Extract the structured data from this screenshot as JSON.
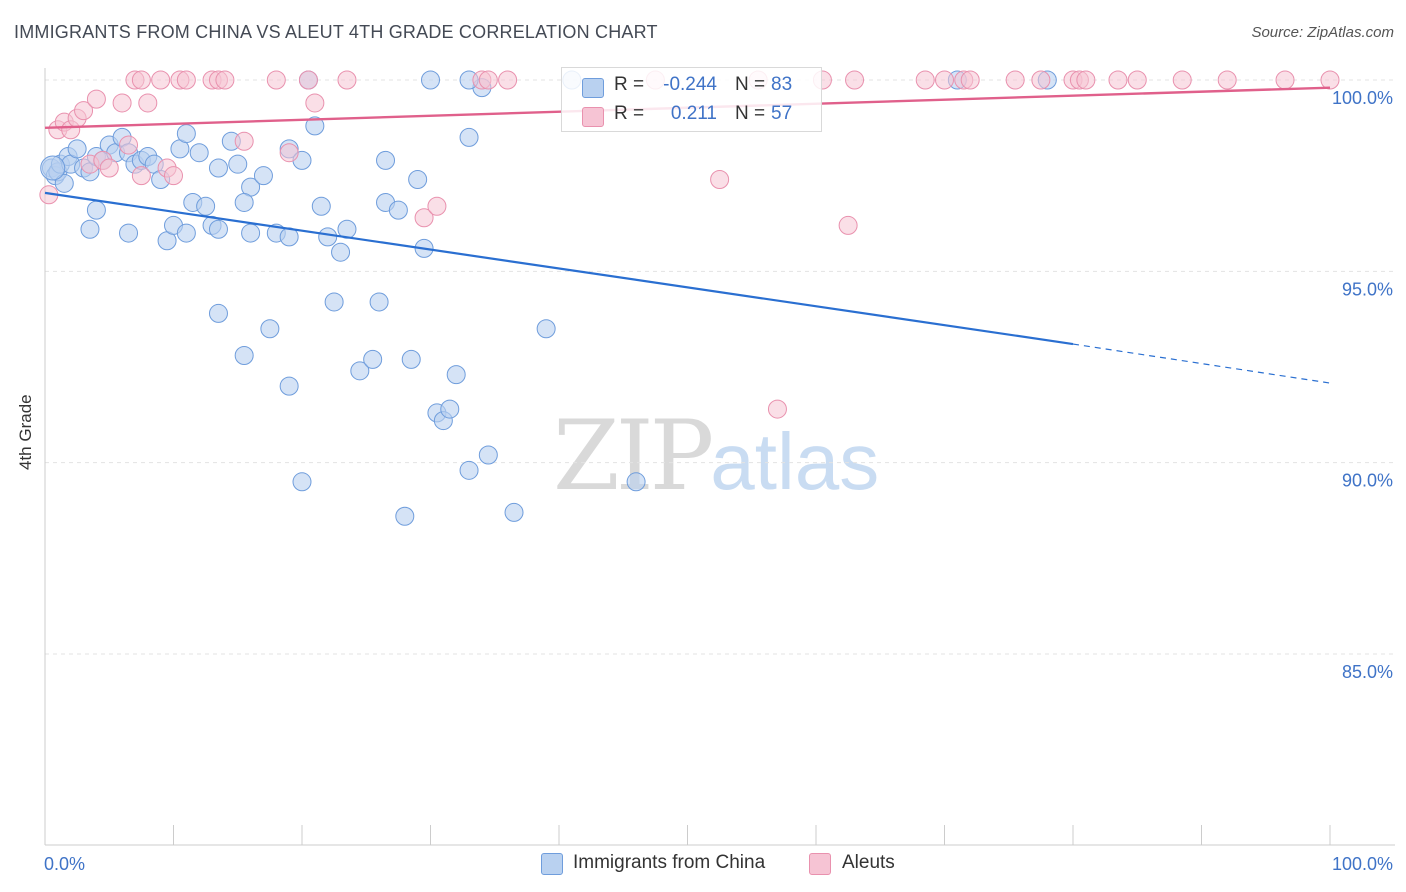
{
  "header": {
    "title": "IMMIGRANTS FROM CHINA VS ALEUT 4TH GRADE CORRELATION CHART",
    "source": "Source: ZipAtlas.com"
  },
  "watermark": {
    "zip": "ZIP",
    "atlas": "atlas"
  },
  "legend": {
    "rows": [
      {
        "r_label": "R =",
        "r_value": "-0.244",
        "n_label": "N =",
        "n_value": "83"
      },
      {
        "r_label": "R =",
        "r_value": "0.211",
        "n_label": "N =",
        "n_value": "57"
      }
    ]
  },
  "bottom_legend": {
    "china": "Immigrants from China",
    "aleut": "Aleuts"
  },
  "colors": {
    "china_fill": "#b9d1f0",
    "china_stroke": "#6f9ddc",
    "china_line": "#2a6fd1",
    "aleut_fill": "#f6c4d4",
    "aleut_stroke": "#e991ae",
    "aleut_line": "#e0608b",
    "tick_label": "#3f73c7",
    "grid": "#e3e3e3"
  },
  "chart_data": {
    "type": "scatter",
    "xlabel": "",
    "ylabel": "4th Grade",
    "xlim": [
      0,
      100
    ],
    "ylim": [
      80.5,
      100.8
    ],
    "x_tick_labels": [
      {
        "value": 0,
        "label": "0.0%"
      },
      {
        "value": 100,
        "label": "100.0%"
      }
    ],
    "y_tick_labels": [
      {
        "value": 100,
        "label": "100.0%"
      },
      {
        "value": 95,
        "label": "95.0%"
      },
      {
        "value": 90,
        "label": "90.0%"
      },
      {
        "value": 85,
        "label": "85.0%"
      }
    ],
    "grid": true,
    "legend_position": "top-center",
    "series": [
      {
        "name": "Immigrants from China",
        "r": -0.244,
        "n": 83,
        "trend": {
          "x0": 0,
          "y0": 97.05,
          "x1": 80,
          "y1": 93.1,
          "dash_to": 100,
          "dash_y": 92.08
        },
        "points": [
          [
            0.5,
            97.7
          ],
          [
            0.8,
            97.5
          ],
          [
            1.0,
            97.6
          ],
          [
            1.2,
            97.8
          ],
          [
            1.5,
            97.3
          ],
          [
            1.8,
            98.0
          ],
          [
            2.0,
            97.8
          ],
          [
            2.5,
            98.2
          ],
          [
            3.0,
            97.7
          ],
          [
            3.5,
            97.6
          ],
          [
            4.0,
            98.0
          ],
          [
            4.5,
            97.9
          ],
          [
            5.0,
            98.3
          ],
          [
            5.5,
            98.1
          ],
          [
            6.0,
            98.5
          ],
          [
            6.5,
            98.1
          ],
          [
            7.0,
            97.8
          ],
          [
            7.5,
            97.9
          ],
          [
            8.0,
            98.0
          ],
          [
            8.5,
            97.8
          ],
          [
            9.0,
            97.4
          ],
          [
            10.5,
            98.2
          ],
          [
            11.0,
            98.6
          ],
          [
            12.0,
            98.1
          ],
          [
            13.5,
            97.7
          ],
          [
            14.5,
            98.4
          ],
          [
            15.0,
            97.8
          ],
          [
            16.0,
            97.2
          ],
          [
            17.0,
            97.5
          ],
          [
            19.0,
            98.2
          ],
          [
            20.0,
            97.9
          ],
          [
            21.0,
            98.8
          ],
          [
            26.5,
            97.9
          ],
          [
            33.0,
            98.5
          ],
          [
            34.0,
            99.8
          ],
          [
            29.0,
            97.4
          ],
          [
            4.0,
            96.6
          ],
          [
            3.5,
            96.1
          ],
          [
            6.5,
            96.0
          ],
          [
            9.5,
            95.8
          ],
          [
            10.0,
            96.2
          ],
          [
            11.0,
            96.0
          ],
          [
            11.5,
            96.8
          ],
          [
            12.5,
            96.7
          ],
          [
            13.0,
            96.2
          ],
          [
            13.5,
            96.1
          ],
          [
            15.5,
            96.8
          ],
          [
            16.0,
            96.0
          ],
          [
            18.0,
            96.0
          ],
          [
            19.0,
            95.9
          ],
          [
            21.5,
            96.7
          ],
          [
            22.0,
            95.9
          ],
          [
            23.0,
            95.5
          ],
          [
            23.5,
            96.1
          ],
          [
            26.5,
            96.8
          ],
          [
            27.5,
            96.6
          ],
          [
            29.5,
            95.6
          ],
          [
            13.5,
            93.9
          ],
          [
            17.5,
            93.5
          ],
          [
            15.5,
            92.8
          ],
          [
            22.5,
            94.2
          ],
          [
            26.0,
            94.2
          ],
          [
            24.5,
            92.4
          ],
          [
            25.5,
            92.7
          ],
          [
            28.5,
            92.7
          ],
          [
            32.0,
            92.3
          ],
          [
            19.0,
            92.0
          ],
          [
            30.5,
            91.3
          ],
          [
            31.0,
            91.1
          ],
          [
            31.5,
            91.4
          ],
          [
            34.5,
            90.2
          ],
          [
            33.0,
            89.8
          ],
          [
            20.0,
            89.5
          ],
          [
            28.0,
            88.6
          ],
          [
            36.5,
            88.7
          ],
          [
            46.0,
            89.5
          ],
          [
            39.0,
            93.5
          ],
          [
            20.5,
            100.0
          ],
          [
            30.0,
            100.0
          ],
          [
            33.0,
            100.0
          ],
          [
            41.0,
            100.0
          ],
          [
            71.0,
            100.0
          ],
          [
            78.0,
            100.0
          ]
        ]
      },
      {
        "name": "Aleuts",
        "r": 0.211,
        "n": 57,
        "trend": {
          "x0": 0,
          "y0": 98.75,
          "x1": 100,
          "y1": 99.8
        },
        "points": [
          [
            0.3,
            97.0
          ],
          [
            1.0,
            98.7
          ],
          [
            1.5,
            98.9
          ],
          [
            2.0,
            98.7
          ],
          [
            2.5,
            99.0
          ],
          [
            3.0,
            99.2
          ],
          [
            4.0,
            99.5
          ],
          [
            3.5,
            97.8
          ],
          [
            4.5,
            97.9
          ],
          [
            5.0,
            97.7
          ],
          [
            6.0,
            99.4
          ],
          [
            6.5,
            98.3
          ],
          [
            7.5,
            97.5
          ],
          [
            8.0,
            99.4
          ],
          [
            9.5,
            97.7
          ],
          [
            10.0,
            97.5
          ],
          [
            15.5,
            98.4
          ],
          [
            19.0,
            98.1
          ],
          [
            21.0,
            99.4
          ],
          [
            29.5,
            96.4
          ],
          [
            30.5,
            96.7
          ],
          [
            52.5,
            97.4
          ],
          [
            62.5,
            96.2
          ],
          [
            57.0,
            91.4
          ],
          [
            7.0,
            100.0
          ],
          [
            7.5,
            100.0
          ],
          [
            9.0,
            100.0
          ],
          [
            10.5,
            100.0
          ],
          [
            11.0,
            100.0
          ],
          [
            13.0,
            100.0
          ],
          [
            13.5,
            100.0
          ],
          [
            14.0,
            100.0
          ],
          [
            18.0,
            100.0
          ],
          [
            20.5,
            100.0
          ],
          [
            23.5,
            100.0
          ],
          [
            34.0,
            100.0
          ],
          [
            34.5,
            100.0
          ],
          [
            36.0,
            100.0
          ],
          [
            47.5,
            100.0
          ],
          [
            55.5,
            100.0
          ],
          [
            60.5,
            100.0
          ],
          [
            63.0,
            100.0
          ],
          [
            68.5,
            100.0
          ],
          [
            70.0,
            100.0
          ],
          [
            71.5,
            100.0
          ],
          [
            72.0,
            100.0
          ],
          [
            75.5,
            100.0
          ],
          [
            77.5,
            100.0
          ],
          [
            80.0,
            100.0
          ],
          [
            80.5,
            100.0
          ],
          [
            81.0,
            100.0
          ],
          [
            83.5,
            100.0
          ],
          [
            85.0,
            100.0
          ],
          [
            88.5,
            100.0
          ],
          [
            92.0,
            100.0
          ],
          [
            96.5,
            100.0
          ],
          [
            100.0,
            100.0
          ]
        ]
      }
    ]
  }
}
